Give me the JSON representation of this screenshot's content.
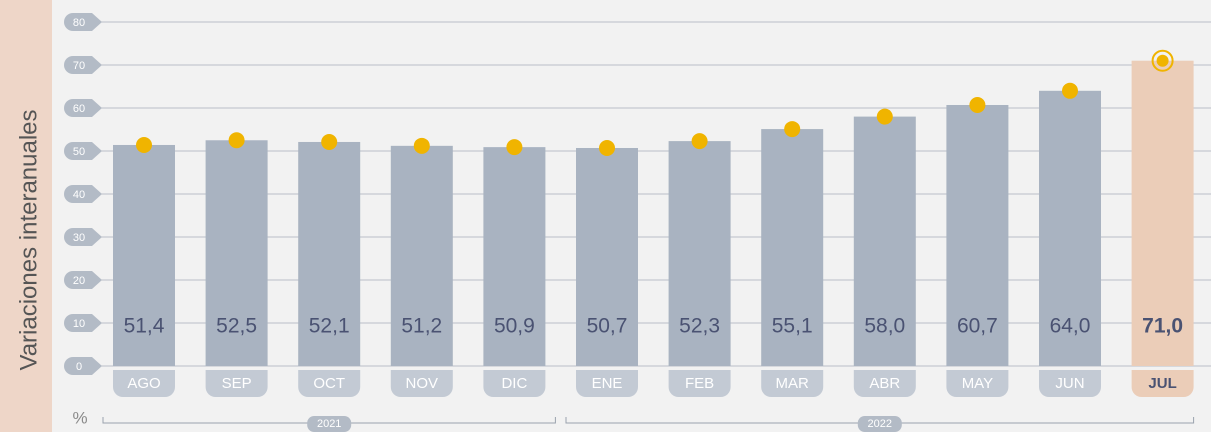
{
  "chart_data": {
    "type": "bar",
    "y_axis_label": "Variaciones interanuales",
    "unit": "%",
    "categories": [
      "AGO",
      "SEP",
      "OCT",
      "NOV",
      "DIC",
      "ENE",
      "FEB",
      "MAR",
      "ABR",
      "MAY",
      "JUN",
      "JUL"
    ],
    "values": [
      51.4,
      52.5,
      52.1,
      51.2,
      50.9,
      50.7,
      52.3,
      55.1,
      58.0,
      60.7,
      64.0,
      71.0
    ],
    "value_labels": [
      "51,4",
      "52,5",
      "52,1",
      "51,2",
      "50,9",
      "50,7",
      "52,3",
      "55,1",
      "58,0",
      "60,7",
      "64,0",
      "71,0"
    ],
    "color": "#a9b3c1",
    "dot_color": "#f0b400",
    "highlight": "JUL",
    "highlight_color": "#ebcdb8",
    "x_groups": [
      {
        "label": "2021",
        "span": 5
      },
      {
        "label": "2022",
        "span": 7
      }
    ],
    "ylim": [
      0,
      80
    ],
    "yticks": [
      0,
      10,
      20,
      30,
      40,
      50,
      60,
      70,
      80
    ],
    "grid": true
  }
}
